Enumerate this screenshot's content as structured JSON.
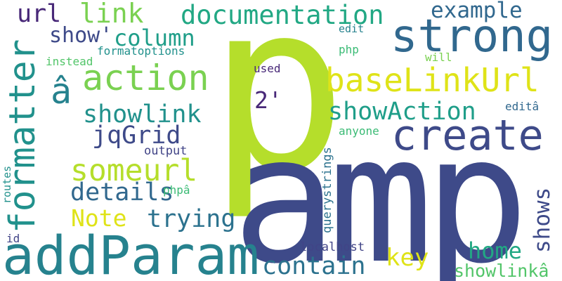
{
  "words": {
    "p": "p",
    "amp": "amp",
    "addParam": "addParam",
    "strong": "strong",
    "create": "create",
    "baseLinkUrl": "baseLinkUrl",
    "documentation": "documentation",
    "action": "action",
    "formatter": "formatter",
    "someurl": "someurl",
    "showlink": "showlink",
    "showAction": "showAction",
    "jqGrid": "jqGrid",
    "details": "details",
    "trying": "trying",
    "contain": "contain",
    "column": "column",
    "show": "show'",
    "url": "url",
    "link": "link",
    "example": "example",
    "a_circ": "â",
    "two": "2'",
    "note": "Note",
    "key": "key",
    "home": "home",
    "shows": "shows",
    "showlinka": "showlinkâ",
    "localhost": "localhost",
    "querystrings": "querystrings",
    "anyone": "anyone",
    "edita": "editâ",
    "used": "used",
    "will": "will",
    "php": "php",
    "edit": "edit",
    "formatoptions": "formatoptions",
    "instead": "instead",
    "output": "output",
    "phpa": "phpâ",
    "routes": "routes",
    "id": "id"
  }
}
